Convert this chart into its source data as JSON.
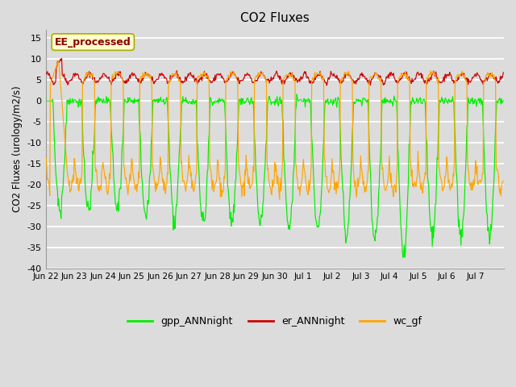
{
  "title": "CO2 Fluxes",
  "ylabel": "CO2 Fluxes (urology/m2/s)",
  "annotation": "EE_processed",
  "annotation_color": "#8B0000",
  "annotation_bg": "#FFFFCC",
  "ylim": [
    -40,
    17
  ],
  "yticks": [
    -40,
    -35,
    -30,
    -25,
    -20,
    -15,
    -10,
    -5,
    0,
    5,
    10,
    15
  ],
  "background_color": "#DCDCDC",
  "grid_color": "#FFFFFF",
  "line_green": "#00EE00",
  "line_red": "#CC0000",
  "line_orange": "#FFA500",
  "legend_labels": [
    "gpp_ANNnight",
    "er_ANNnight",
    "wc_gf"
  ],
  "n_days": 16,
  "points_per_day": 48,
  "tick_labels": [
    "Jun 22",
    "Jun 23",
    "Jun 24",
    "Jun 25",
    "Jun 26",
    "Jun 27",
    "Jun 28",
    "Jun 29",
    "Jun 30",
    "Jul 1",
    "Jul 2",
    "Jul 3",
    "Jul 4",
    "Jul 5",
    "Jul 6",
    "Jul 7"
  ],
  "tick_positions": [
    0,
    1,
    2,
    3,
    4,
    5,
    6,
    7,
    8,
    9,
    10,
    11,
    12,
    13,
    14,
    15
  ]
}
